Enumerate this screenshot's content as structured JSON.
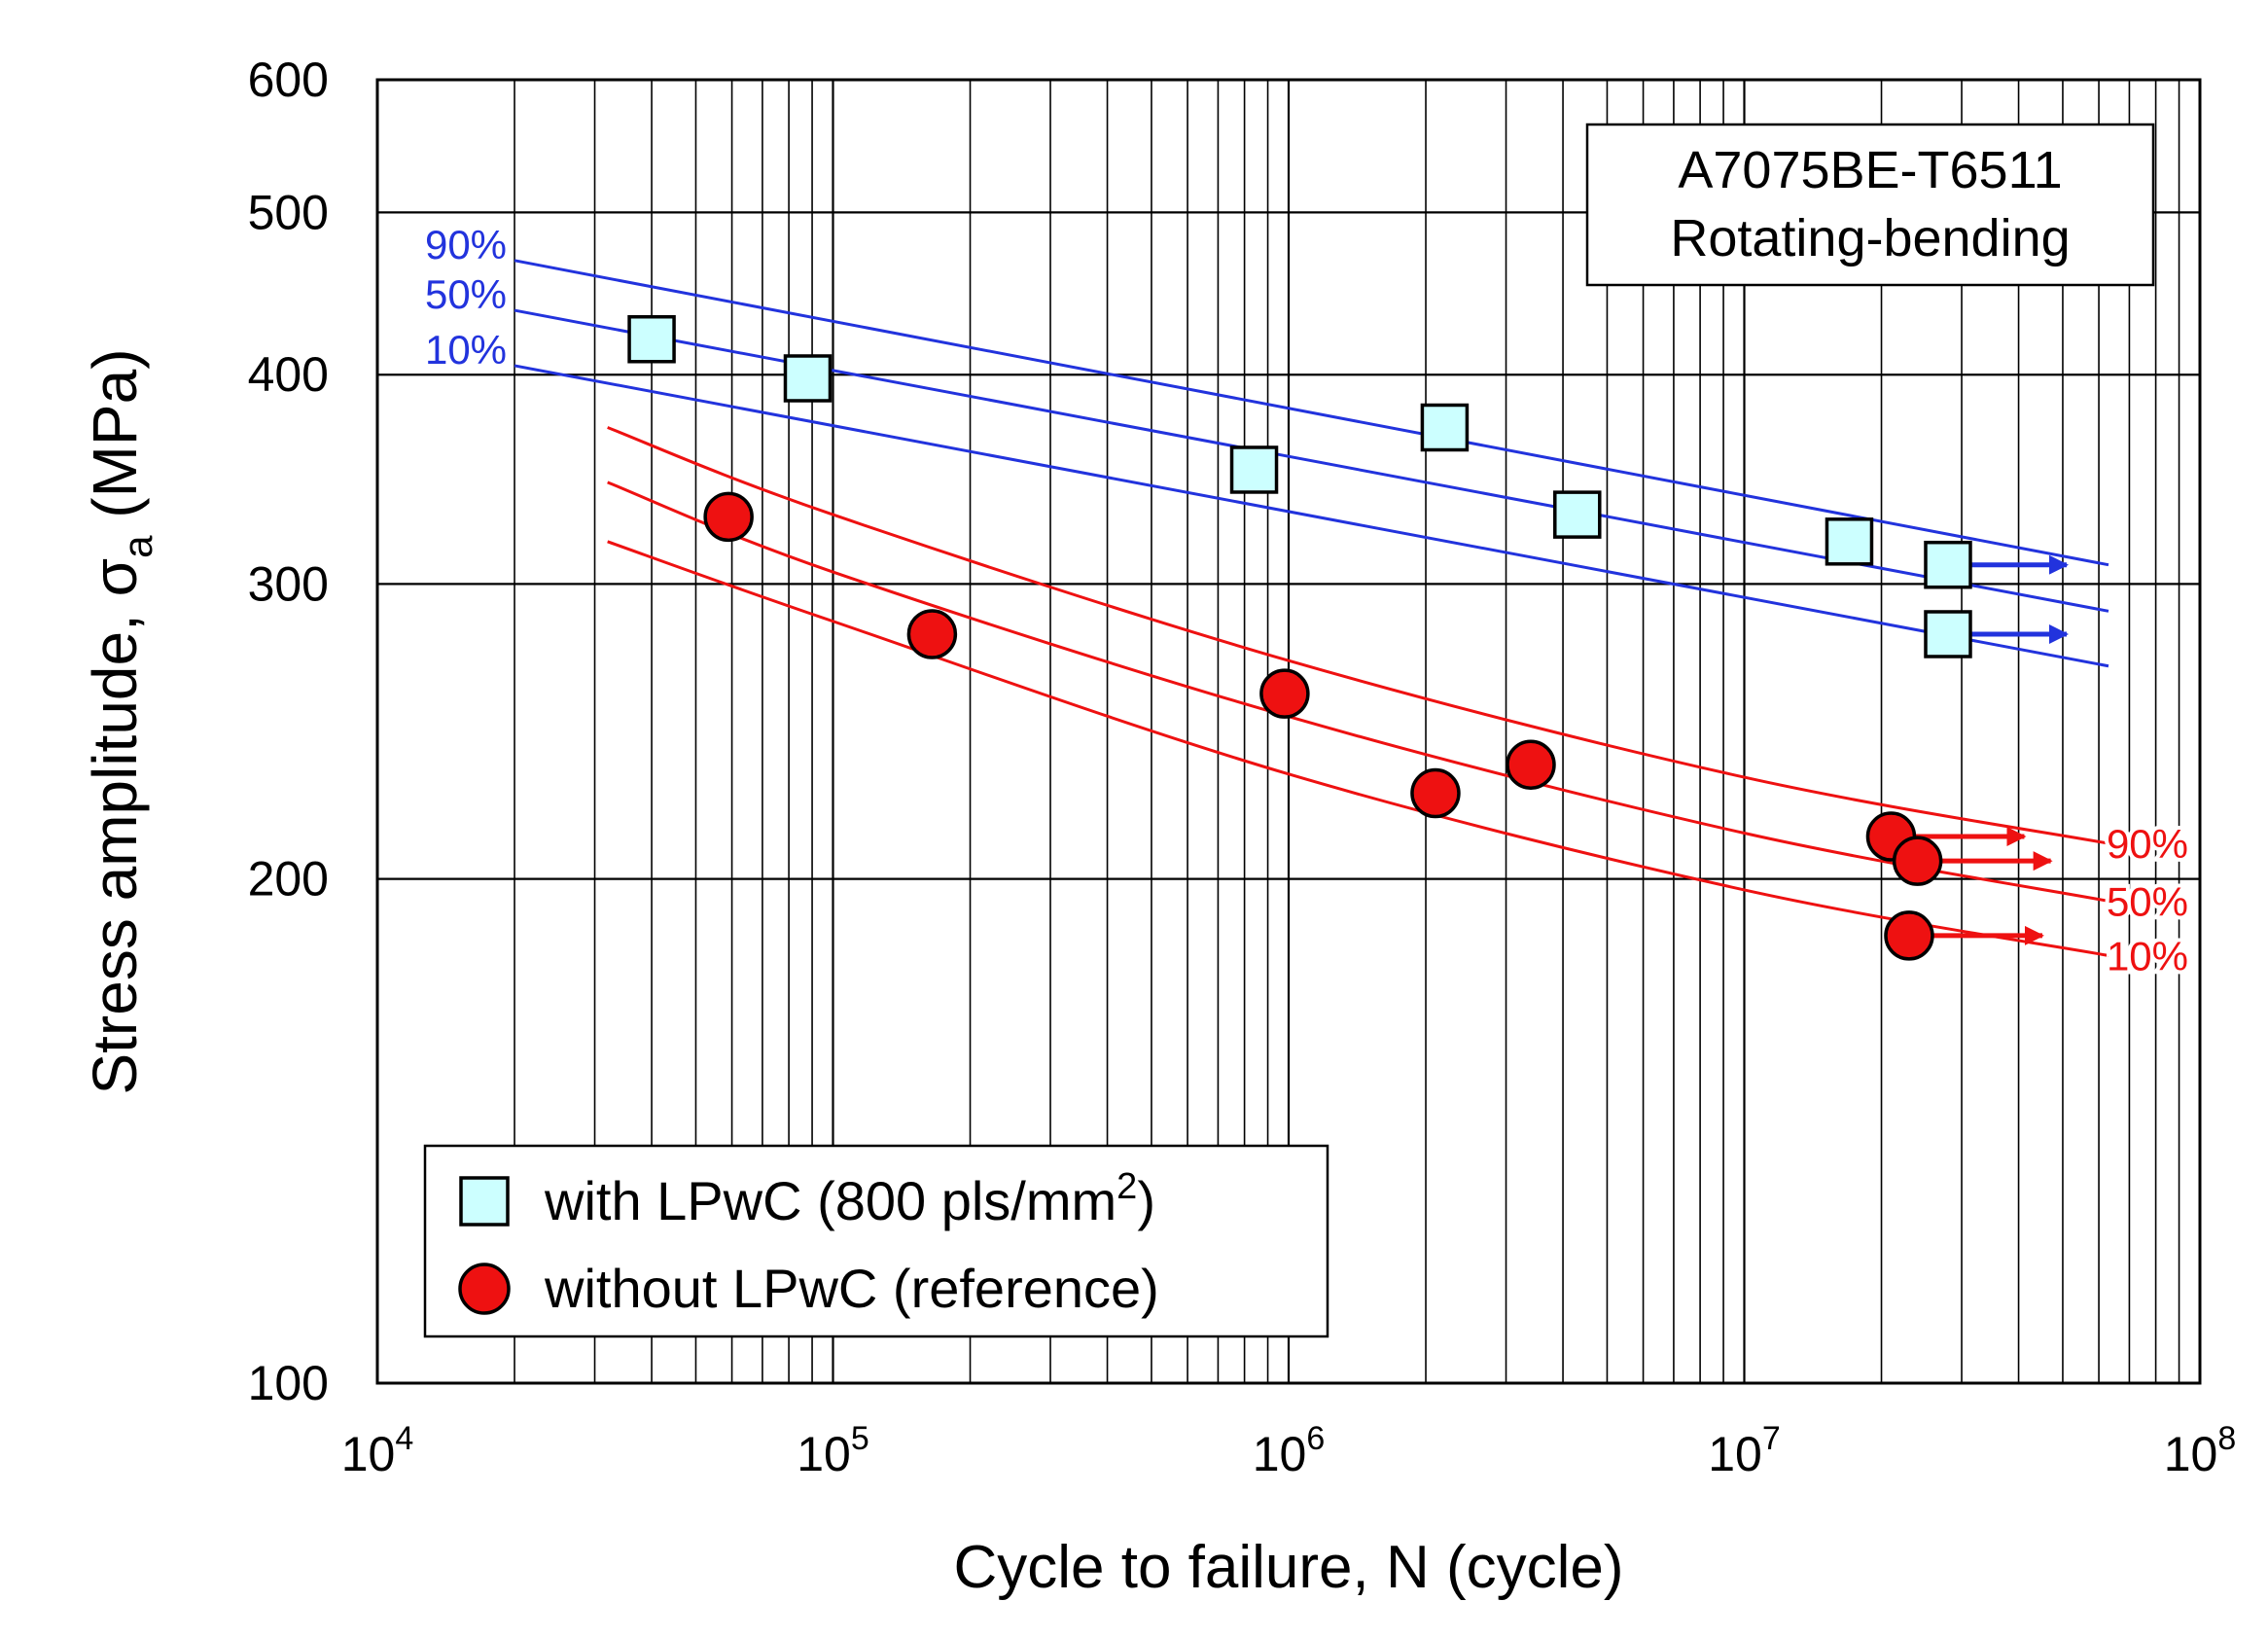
{
  "chart_data": {
    "type": "scatter",
    "xscale": "log",
    "yscale": "log",
    "xlim": [
      10000,
      100000000
    ],
    "ylim": [
      100,
      600
    ],
    "xlabel": "Cycle to failure, N (cycle)",
    "ylabel": {
      "prefix": "Stress amplitude,  ",
      "symbol": "σ",
      "subscript": "a",
      "suffix": " (MPa)"
    },
    "y_ticks": [
      {
        "value": 100,
        "label": "100"
      },
      {
        "value": 200,
        "label": "200"
      },
      {
        "value": 300,
        "label": "300"
      },
      {
        "value": 400,
        "label": "400"
      },
      {
        "value": 500,
        "label": "500"
      },
      {
        "value": 600,
        "label": "600"
      }
    ],
    "x_ticks": [
      {
        "value": 10000,
        "base": "10",
        "exp": "4"
      },
      {
        "value": 100000,
        "base": "10",
        "exp": "5"
      },
      {
        "value": 1000000,
        "base": "10",
        "exp": "6"
      },
      {
        "value": 10000000,
        "base": "10",
        "exp": "7"
      },
      {
        "value": 100000000,
        "base": "10",
        "exp": "8"
      }
    ],
    "info_box": {
      "lines": [
        "A7075BE-T6511",
        "Rotating-bending"
      ],
      "position": "top-right"
    },
    "legend": {
      "position": "bottom-left",
      "entries": [
        {
          "marker": "square",
          "color": "#ccffff",
          "text": "with LPwC (800 pls/mm",
          "sup": "2",
          "end": ")"
        },
        {
          "marker": "circle",
          "color": "#ee1111",
          "text": "without LPwC (reference)",
          "sup": "",
          "end": ""
        }
      ]
    },
    "series": [
      {
        "name": "with LPwC (800 pls/mm2)",
        "marker": "square",
        "fill": "#ccffff",
        "points": [
          {
            "N": 40000,
            "S": 420
          },
          {
            "N": 88000,
            "S": 398
          },
          {
            "N": 840000,
            "S": 351
          },
          {
            "N": 2200000,
            "S": 372
          },
          {
            "N": 4300000,
            "S": 330
          },
          {
            "N": 17000000,
            "S": 318
          },
          {
            "N": 28000000,
            "S": 308,
            "runout": true
          },
          {
            "N": 28000000,
            "S": 280,
            "runout": true
          }
        ]
      },
      {
        "name": "without LPwC (reference)",
        "marker": "circle",
        "fill": "#ee1111",
        "points": [
          {
            "N": 59000,
            "S": 329
          },
          {
            "N": 165000,
            "S": 280
          },
          {
            "N": 980000,
            "S": 258
          },
          {
            "N": 2100000,
            "S": 225
          },
          {
            "N": 3400000,
            "S": 234
          },
          {
            "N": 21000000,
            "S": 212,
            "runout": true
          },
          {
            "N": 24000000,
            "S": 205,
            "runout": true
          },
          {
            "N": 23000000,
            "S": 185,
            "runout": true
          }
        ]
      }
    ],
    "probability_lines": [
      {
        "group": "with LPwC",
        "label": "90%",
        "color": "#2233dd",
        "shape": "linear",
        "points": [
          [
            20000,
            468
          ],
          [
            63000000,
            308
          ]
        ]
      },
      {
        "group": "with LPwC",
        "label": "50%",
        "color": "#2233dd",
        "shape": "linear",
        "points": [
          [
            20000,
            437
          ],
          [
            63000000,
            289
          ]
        ]
      },
      {
        "group": "with LPwC",
        "label": "10%",
        "color": "#2233dd",
        "shape": "linear",
        "points": [
          [
            20000,
            405
          ],
          [
            63000000,
            268
          ]
        ]
      },
      {
        "group": "without LPwC",
        "label": "90%",
        "color": "#ee1111",
        "shape": "curve",
        "points": [
          [
            32000,
            372
          ],
          [
            100000,
            330
          ],
          [
            1000000,
            270
          ],
          [
            10000000,
            230
          ],
          [
            63000000,
            210
          ]
        ]
      },
      {
        "group": "without LPwC",
        "label": "50%",
        "color": "#ee1111",
        "shape": "curve",
        "points": [
          [
            32000,
            345
          ],
          [
            100000,
            305
          ],
          [
            1000000,
            250
          ],
          [
            10000000,
            213
          ],
          [
            63000000,
            194
          ]
        ]
      },
      {
        "group": "without LPwC",
        "label": "10%",
        "color": "#ee1111",
        "shape": "curve",
        "points": [
          [
            32000,
            318
          ],
          [
            100000,
            285
          ],
          [
            1000000,
            231
          ],
          [
            10000000,
            197
          ],
          [
            63000000,
            180
          ]
        ]
      }
    ]
  }
}
